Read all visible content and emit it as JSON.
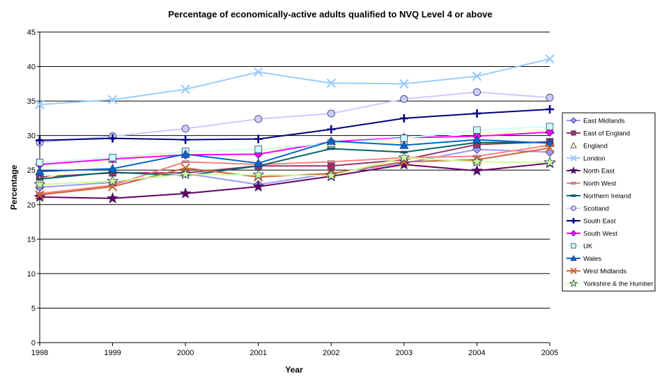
{
  "chart_data": {
    "type": "line",
    "title": "Percentage of economically-active adults qualified to NVQ Level 4 or above",
    "xlabel": "Year",
    "ylabel": "Percentage",
    "ylim": [
      0,
      45
    ],
    "ytick_step": 5,
    "grid": "horizontal",
    "legend_position": "right",
    "categories": [
      "1998",
      "1999",
      "2000",
      "2001",
      "2002",
      "2003",
      "2004",
      "2005"
    ],
    "series": [
      {
        "name": "East Midlands",
        "color": "#9999ff",
        "marker": "diamond",
        "values": [
          22.5,
          23.2,
          24.5,
          22.9,
          24.5,
          26.0,
          28.0,
          27.6
        ]
      },
      {
        "name": "East of England",
        "color": "#993366",
        "marker": "square",
        "values": [
          24.0,
          24.6,
          24.6,
          25.6,
          25.6,
          26.5,
          28.7,
          29.1
        ]
      },
      {
        "name": "England",
        "color": "#ffffcc",
        "marker": "triangle",
        "values": [
          23.6,
          26.6,
          27.6,
          27.8,
          28.6,
          29.1,
          30.4,
          30.8
        ]
      },
      {
        "name": "London",
        "color": "#99ccff",
        "marker": "x",
        "values": [
          34.5,
          35.2,
          36.7,
          39.2,
          37.6,
          37.5,
          38.6,
          41.1
        ]
      },
      {
        "name": "North East",
        "color": "#660066",
        "marker": "star",
        "values": [
          21.1,
          20.9,
          21.6,
          22.6,
          24.1,
          25.8,
          24.9,
          26.0
        ]
      },
      {
        "name": "North West",
        "color": "#ff8080",
        "marker": "dash",
        "values": [
          21.6,
          22.8,
          26.2,
          25.8,
          26.2,
          26.8,
          27.0,
          28.6
        ]
      },
      {
        "name": "Northern Ireland",
        "color": "#006666",
        "marker": "dash",
        "values": [
          23.7,
          24.7,
          24.2,
          25.6,
          28.1,
          27.6,
          29.0,
          29.0
        ]
      },
      {
        "name": "Scotland",
        "color": "#ccccff",
        "marker": "circle",
        "values": [
          29.0,
          29.9,
          31.0,
          32.4,
          33.2,
          35.3,
          36.3,
          35.5
        ]
      },
      {
        "name": "South East",
        "color": "#000080",
        "marker": "plus",
        "values": [
          29.3,
          29.6,
          29.4,
          29.5,
          30.9,
          32.5,
          33.2,
          33.8
        ]
      },
      {
        "name": "South West",
        "color": "#ff00ff",
        "marker": "diamond",
        "values": [
          25.8,
          26.6,
          27.2,
          27.3,
          29.1,
          29.7,
          29.9,
          30.5
        ]
      },
      {
        "name": "UK",
        "color": "#ccffff",
        "marker": "square",
        "values": [
          26.1,
          26.8,
          27.7,
          28.0,
          28.9,
          29.6,
          30.8,
          31.3
        ]
      },
      {
        "name": "Wales",
        "color": "#0066cc",
        "marker": "triangle",
        "values": [
          24.8,
          25.2,
          27.3,
          26.0,
          29.2,
          28.6,
          29.4,
          28.9
        ]
      },
      {
        "name": "West Midlands",
        "color": "#cc6633",
        "marker": "x",
        "values": [
          21.4,
          22.6,
          25.3,
          24.0,
          24.5,
          26.2,
          26.5,
          28.2
        ]
      },
      {
        "name": "Yorkshire & the Humber",
        "color": "#ccff99",
        "marker": "star",
        "values": [
          22.9,
          23.4,
          24.4,
          24.3,
          24.2,
          26.8,
          26.2,
          26.1
        ]
      }
    ]
  }
}
